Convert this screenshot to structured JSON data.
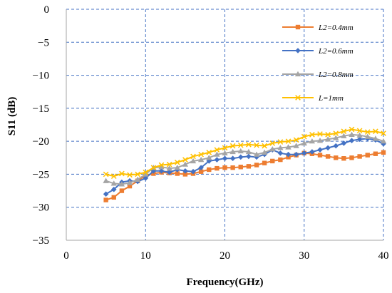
{
  "chart_data": {
    "type": "line",
    "title": "",
    "xlabel": "Frequency(GHz)",
    "ylabel": "S11 (dB)",
    "xlim": [
      0,
      40
    ],
    "ylim": [
      -35,
      0
    ],
    "xticks": [
      0,
      10,
      20,
      30,
      40
    ],
    "yticks": [
      0,
      -5,
      -10,
      -15,
      -20,
      -25,
      -30,
      -35
    ],
    "xtick_labels": [
      "0",
      "10",
      "20",
      "30",
      "40"
    ],
    "ytick_labels": [
      "0",
      "−5",
      "−10",
      "−15",
      "−20",
      "−25",
      "−30",
      "−35"
    ],
    "grid": true,
    "legend_position": "top-right",
    "series": [
      {
        "name": "L2=0.4mm",
        "color": "#ED7D31",
        "marker": "square",
        "x": [
          5,
          6,
          7,
          8,
          9,
          10,
          11,
          12,
          13,
          14,
          15,
          16,
          17,
          18,
          19,
          20,
          21,
          22,
          23,
          24,
          25,
          26,
          27,
          28,
          29,
          30,
          31,
          32,
          33,
          34,
          35,
          36,
          37,
          38,
          39,
          40
        ],
        "y": [
          -28.9,
          -28.5,
          -27.5,
          -26.8,
          -26.0,
          -25.2,
          -24.9,
          -24.7,
          -24.8,
          -24.9,
          -25.0,
          -24.9,
          -24.6,
          -24.3,
          -24.1,
          -24.0,
          -24.0,
          -23.9,
          -23.8,
          -23.6,
          -23.3,
          -23.0,
          -22.8,
          -22.4,
          -22.1,
          -21.8,
          -21.9,
          -22.1,
          -22.3,
          -22.5,
          -22.6,
          -22.5,
          -22.3,
          -22.1,
          -21.9,
          -21.7
        ]
      },
      {
        "name": "L2=0.6mm",
        "color": "#4472C4",
        "marker": "diamond",
        "x": [
          5,
          6,
          7,
          8,
          9,
          10,
          11,
          12,
          13,
          14,
          15,
          16,
          17,
          18,
          19,
          20,
          21,
          22,
          23,
          24,
          25,
          26,
          27,
          28,
          29,
          30,
          31,
          32,
          33,
          34,
          35,
          36,
          37,
          38,
          39,
          40
        ],
        "y": [
          -28.0,
          -27.3,
          -26.2,
          -26.0,
          -26.1,
          -25.6,
          -24.5,
          -24.5,
          -24.7,
          -24.3,
          -24.5,
          -24.6,
          -24.0,
          -23.0,
          -22.8,
          -22.6,
          -22.6,
          -22.4,
          -22.3,
          -22.4,
          -22.0,
          -21.3,
          -21.8,
          -22.0,
          -22.0,
          -21.8,
          -21.6,
          -21.3,
          -21.0,
          -20.7,
          -20.3,
          -19.9,
          -19.7,
          -19.6,
          -19.8,
          -20.4
        ]
      },
      {
        "name": "L2=0.8mm",
        "color": "#A5A5A5",
        "marker": "triangle",
        "x": [
          5,
          6,
          7,
          8,
          9,
          10,
          11,
          12,
          13,
          14,
          15,
          16,
          17,
          18,
          19,
          20,
          21,
          22,
          23,
          24,
          25,
          26,
          27,
          28,
          29,
          30,
          31,
          32,
          33,
          34,
          35,
          36,
          37,
          38,
          39,
          40
        ],
        "y": [
          -26.0,
          -26.4,
          -26.5,
          -26.3,
          -25.8,
          -25.0,
          -24.0,
          -23.9,
          -24.1,
          -24.0,
          -23.5,
          -23.0,
          -22.8,
          -22.5,
          -22.0,
          -21.8,
          -21.6,
          -21.5,
          -21.6,
          -22.0,
          -21.7,
          -21.2,
          -21.0,
          -20.9,
          -20.7,
          -20.3,
          -20.0,
          -19.9,
          -19.7,
          -19.5,
          -19.2,
          -19.0,
          -19.1,
          -19.3,
          -19.6,
          -20.0
        ]
      },
      {
        "name": "L=1mm",
        "color": "#FFC000",
        "marker": "x",
        "x": [
          5,
          6,
          7,
          8,
          9,
          10,
          11,
          12,
          13,
          14,
          15,
          16,
          17,
          18,
          19,
          20,
          21,
          22,
          23,
          24,
          25,
          26,
          27,
          28,
          29,
          30,
          31,
          32,
          33,
          34,
          35,
          36,
          37,
          38,
          39,
          40
        ],
        "y": [
          -25.0,
          -25.3,
          -24.9,
          -25.1,
          -25.0,
          -24.7,
          -24.0,
          -23.6,
          -23.5,
          -23.2,
          -22.8,
          -22.3,
          -22.0,
          -21.7,
          -21.3,
          -21.0,
          -20.7,
          -20.6,
          -20.5,
          -20.6,
          -20.7,
          -20.3,
          -20.1,
          -20.0,
          -19.8,
          -19.3,
          -19.0,
          -18.9,
          -19.0,
          -18.8,
          -18.5,
          -18.2,
          -18.4,
          -18.6,
          -18.5,
          -18.8
        ]
      }
    ]
  }
}
